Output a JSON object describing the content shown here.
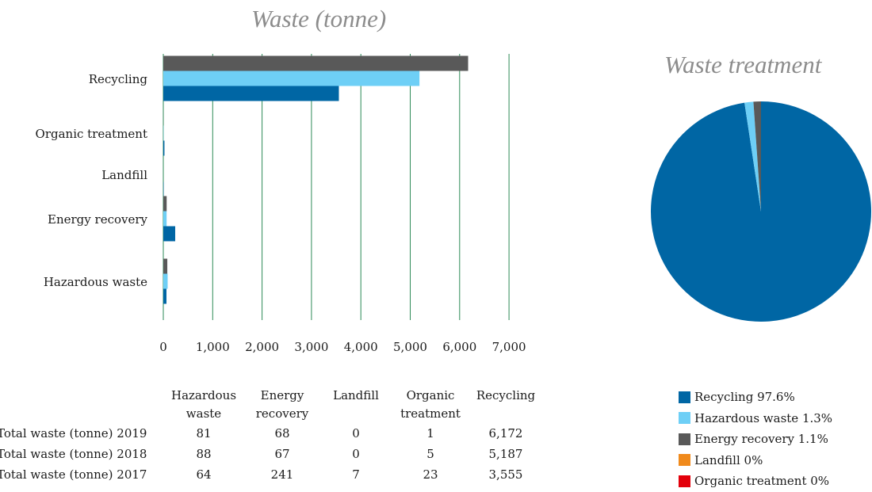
{
  "chart_data": [
    {
      "type": "bar",
      "orientation": "horizontal",
      "title": "Waste (tonne)",
      "categories": [
        "Recycling",
        "Organic treatment",
        "Landfill",
        "Energy recovery",
        "Hazardous waste"
      ],
      "series": [
        {
          "name": "Total waste (tonne) 2019",
          "color": "#595959",
          "values": [
            6172,
            1,
            0,
            68,
            81
          ]
        },
        {
          "name": "Total waste (tonne) 2018",
          "color": "#6ecff6",
          "values": [
            5187,
            5,
            0,
            67,
            88
          ]
        },
        {
          "name": "Total waste (tonne) 2017",
          "color": "#0066a4",
          "values": [
            3555,
            23,
            7,
            241,
            64
          ]
        }
      ],
      "xlim": [
        0,
        7000
      ],
      "xticks": [
        "0",
        "1,000",
        "2,000",
        "3,000",
        "4,000",
        "5,000",
        "6,000",
        "7,000"
      ],
      "gridlines": "vertical",
      "grid_color": "#2e8b57",
      "table": {
        "columns": [
          "Hazardous waste",
          "Energy recovery",
          "Landfill",
          "Organic treatment",
          "Recycling"
        ],
        "rows": [
          {
            "label": "Total waste (tonne) 2019",
            "values": [
              "81",
              "68",
              "0",
              "1",
              "6,172"
            ]
          },
          {
            "label": "Total waste (tonne) 2018",
            "values": [
              "88",
              "67",
              "0",
              "5",
              "5,187"
            ]
          },
          {
            "label": "Total waste (tonne) 2017",
            "values": [
              "64",
              "241",
              "7",
              "23",
              "3,555"
            ]
          }
        ]
      }
    },
    {
      "type": "pie",
      "title": "Waste treatment",
      "slices": [
        {
          "label": "Recycling",
          "value": 97.6,
          "display": "97.6%",
          "color": "#0066a4"
        },
        {
          "label": "Hazardous waste",
          "value": 1.3,
          "display": "1.3%",
          "color": "#6ecff6"
        },
        {
          "label": "Energy recovery",
          "value": 1.1,
          "display": "1.1%",
          "color": "#595959"
        },
        {
          "label": "Landfill",
          "value": 0,
          "display": "0%",
          "color": "#f08a1c"
        },
        {
          "label": "Organic treatment",
          "value": 0,
          "display": "0%",
          "color": "#e3000b"
        }
      ],
      "legend_position": "bottom"
    }
  ]
}
